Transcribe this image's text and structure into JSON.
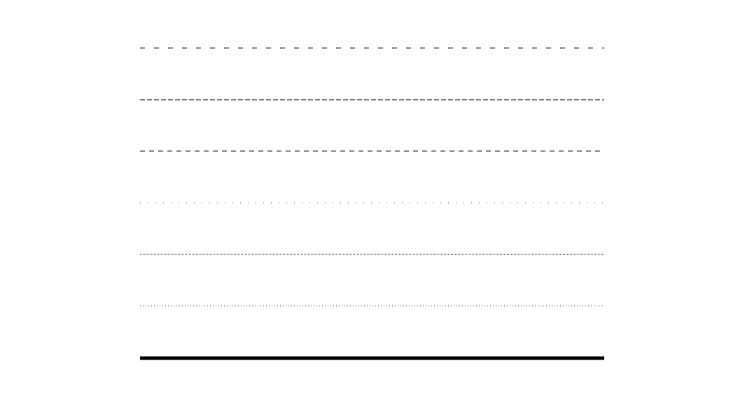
{
  "colors": {
    "background": "#ffffff",
    "line": "#000000"
  },
  "line_styles": [
    {
      "style": "loosely dashed"
    },
    {
      "style": "densely dashed"
    },
    {
      "style": "dashed"
    },
    {
      "style": "loosely dotted"
    },
    {
      "style": "densely dotted"
    },
    {
      "style": "dotted"
    },
    {
      "style": "solid thick"
    }
  ]
}
